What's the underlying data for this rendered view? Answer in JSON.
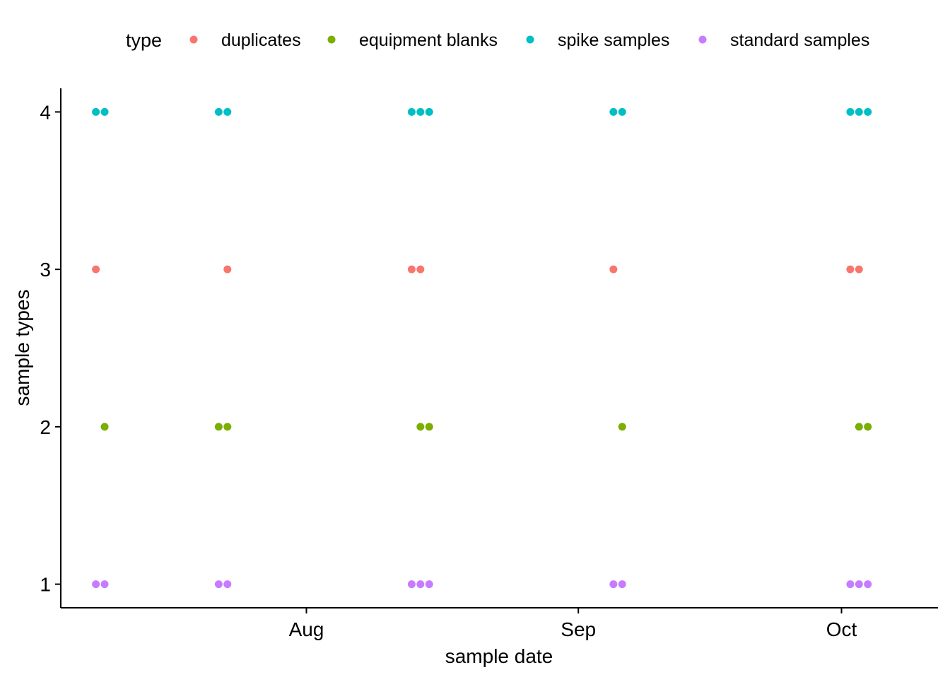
{
  "chart_data": {
    "type": "scatter",
    "title": "",
    "xlabel": "sample date",
    "ylabel": "sample types",
    "x_axis": {
      "type": "date",
      "range": [
        "2023-07-04",
        "2023-10-12"
      ],
      "ticks": [
        {
          "value": "2023-08-01",
          "label": "Aug"
        },
        {
          "value": "2023-09-01",
          "label": "Sep"
        },
        {
          "value": "2023-10-01",
          "label": "Oct"
        }
      ]
    },
    "y_axis": {
      "range": [
        0.85,
        4.15
      ],
      "ticks": [
        {
          "value": 1,
          "label": "1"
        },
        {
          "value": 2,
          "label": "2"
        },
        {
          "value": 3,
          "label": "3"
        },
        {
          "value": 4,
          "label": "4"
        }
      ]
    },
    "grid": false,
    "legend": {
      "title": "type",
      "position": "top"
    },
    "series": [
      {
        "name": "duplicates",
        "color": "#F8766D",
        "points": [
          {
            "x": "2023-07-08",
            "y": 3
          },
          {
            "x": "2023-07-23",
            "y": 3
          },
          {
            "x": "2023-08-13",
            "y": 3
          },
          {
            "x": "2023-08-14",
            "y": 3
          },
          {
            "x": "2023-09-05",
            "y": 3
          },
          {
            "x": "2023-10-02",
            "y": 3
          },
          {
            "x": "2023-10-03",
            "y": 3
          }
        ]
      },
      {
        "name": "equipment blanks",
        "color": "#7CAE00",
        "points": [
          {
            "x": "2023-07-09",
            "y": 2
          },
          {
            "x": "2023-07-22",
            "y": 2
          },
          {
            "x": "2023-07-23",
            "y": 2
          },
          {
            "x": "2023-08-14",
            "y": 2
          },
          {
            "x": "2023-08-15",
            "y": 2
          },
          {
            "x": "2023-09-06",
            "y": 2
          },
          {
            "x": "2023-10-03",
            "y": 2
          },
          {
            "x": "2023-10-04",
            "y": 2
          }
        ]
      },
      {
        "name": "spike samples",
        "color": "#00BFC4",
        "points": [
          {
            "x": "2023-07-08",
            "y": 4
          },
          {
            "x": "2023-07-09",
            "y": 4
          },
          {
            "x": "2023-07-22",
            "y": 4
          },
          {
            "x": "2023-07-23",
            "y": 4
          },
          {
            "x": "2023-08-13",
            "y": 4
          },
          {
            "x": "2023-08-14",
            "y": 4
          },
          {
            "x": "2023-08-15",
            "y": 4
          },
          {
            "x": "2023-09-05",
            "y": 4
          },
          {
            "x": "2023-09-06",
            "y": 4
          },
          {
            "x": "2023-10-02",
            "y": 4
          },
          {
            "x": "2023-10-03",
            "y": 4
          },
          {
            "x": "2023-10-04",
            "y": 4
          }
        ]
      },
      {
        "name": "standard samples",
        "color": "#C77CFF",
        "points": [
          {
            "x": "2023-07-08",
            "y": 1
          },
          {
            "x": "2023-07-09",
            "y": 1
          },
          {
            "x": "2023-07-22",
            "y": 1
          },
          {
            "x": "2023-07-23",
            "y": 1
          },
          {
            "x": "2023-08-13",
            "y": 1
          },
          {
            "x": "2023-08-14",
            "y": 1
          },
          {
            "x": "2023-08-15",
            "y": 1
          },
          {
            "x": "2023-09-05",
            "y": 1
          },
          {
            "x": "2023-09-06",
            "y": 1
          },
          {
            "x": "2023-10-02",
            "y": 1
          },
          {
            "x": "2023-10-03",
            "y": 1
          },
          {
            "x": "2023-10-04",
            "y": 1
          }
        ]
      }
    ]
  }
}
